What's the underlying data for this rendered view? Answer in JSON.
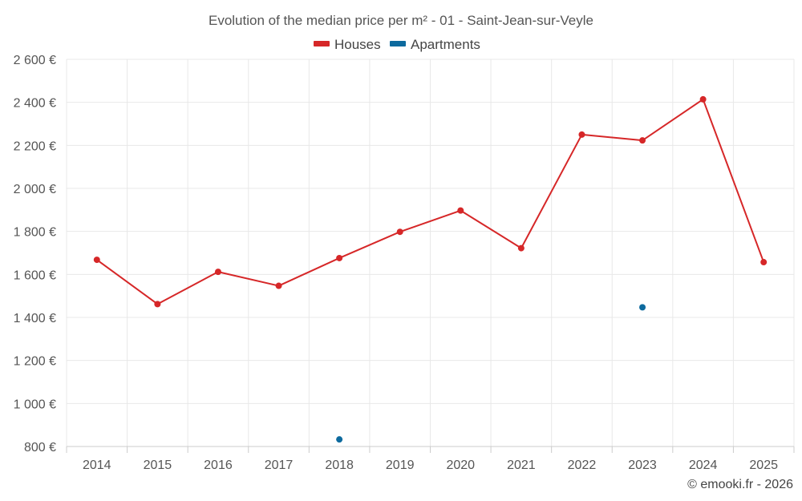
{
  "chart_data": {
    "type": "line",
    "title": "Evolution of the median price per m² - 01 - Saint-Jean-sur-Veyle",
    "categories": [
      "2014",
      "2015",
      "2016",
      "2017",
      "2018",
      "2019",
      "2020",
      "2021",
      "2022",
      "2023",
      "2024",
      "2025"
    ],
    "series": [
      {
        "name": "Houses",
        "color": "#d62728",
        "values": [
          1668,
          1462,
          1612,
          1547,
          1676,
          1798,
          1897,
          1722,
          2250,
          2223,
          2414,
          1657
        ]
      },
      {
        "name": "Apartments",
        "color": "#0d6a9e",
        "values": [
          null,
          null,
          null,
          null,
          833,
          null,
          null,
          null,
          null,
          1447,
          null,
          null
        ]
      }
    ],
    "ylim": [
      800,
      2600
    ],
    "yticks": [
      800,
      1000,
      1200,
      1400,
      1600,
      1800,
      2000,
      2200,
      2400,
      2600
    ],
    "ytick_labels": [
      "800 €",
      "1 000 €",
      "1 200 €",
      "1 400 €",
      "1 600 €",
      "1 800 €",
      "2 000 €",
      "2 200 €",
      "2 400 €",
      "2 600 €"
    ],
    "xlabel": "",
    "ylabel": "",
    "grid": true,
    "legend_position": "top-center"
  },
  "credit": "© emooki.fr - 2026"
}
